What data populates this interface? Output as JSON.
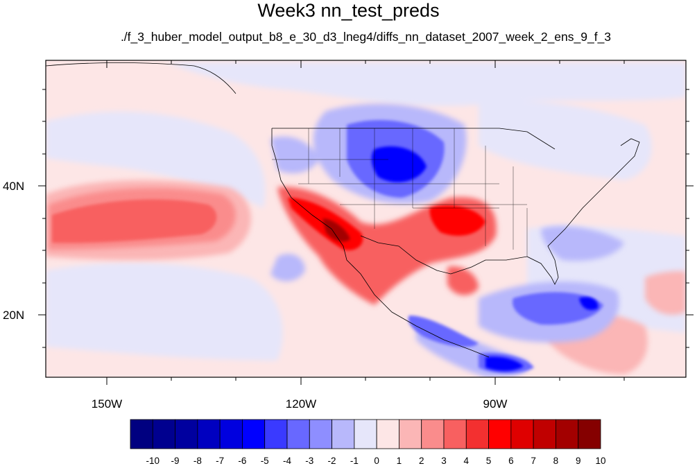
{
  "title": "Week3 nn_test_preds",
  "subtitle": "./f_3_huber_model_output_b8_e_30_d3_lneg4/diffs_nn_dataset_2007_week_2_ens_9_f_3",
  "axes": {
    "lon_labels": [
      "150W",
      "120W",
      "90W"
    ],
    "lat_labels": [
      "40N",
      "20N"
    ]
  },
  "colorbar": {
    "labels": [
      "-10",
      "-9",
      "-8",
      "-7",
      "-6",
      "-5",
      "-4",
      "-3",
      "-2",
      "-1",
      "0",
      "1",
      "2",
      "3",
      "4",
      "5",
      "6",
      "7",
      "8",
      "9",
      "10"
    ],
    "colors": [
      "#000080",
      "#00008f",
      "#00009f",
      "#0000c0",
      "#0000df",
      "#0000ff",
      "#3a3aff",
      "#6868ff",
      "#8e8eff",
      "#b8b8fb",
      "#e6e6fa",
      "#fde6e6",
      "#fbb6b6",
      "#fa8c8c",
      "#f86060",
      "#f33030",
      "#ff0000",
      "#df0000",
      "#c00000",
      "#a30000",
      "#850000"
    ]
  }
}
